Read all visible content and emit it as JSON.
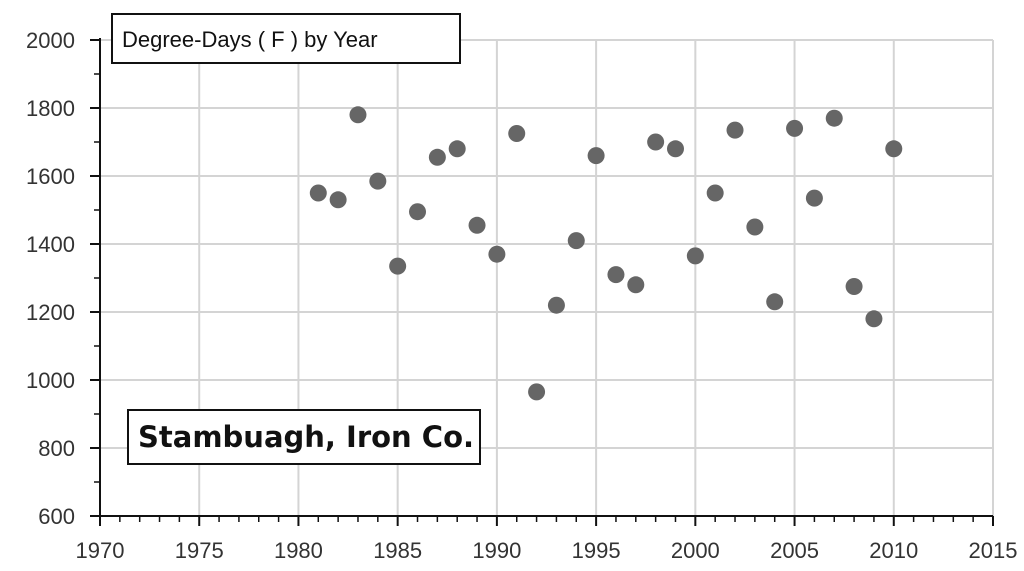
{
  "chart_data": {
    "type": "scatter",
    "title": "Degree-Days ( F ) by Year",
    "annotation": "Stambuagh, Iron Co.",
    "xlabel": "",
    "ylabel": "",
    "xlim": [
      1970,
      2015
    ],
    "ylim": [
      600,
      2000
    ],
    "x_ticks": [
      1970,
      1975,
      1980,
      1985,
      1990,
      1995,
      2000,
      2005,
      2010,
      2015
    ],
    "y_ticks": [
      600,
      800,
      1000,
      1200,
      1400,
      1600,
      1800,
      2000
    ],
    "grid": true,
    "marker_color": "#666666",
    "series": [
      {
        "points": [
          {
            "x": 1981,
            "y": 1550
          },
          {
            "x": 1982,
            "y": 1530
          },
          {
            "x": 1983,
            "y": 1780
          },
          {
            "x": 1984,
            "y": 1585
          },
          {
            "x": 1985,
            "y": 1335
          },
          {
            "x": 1986,
            "y": 1495
          },
          {
            "x": 1987,
            "y": 1655
          },
          {
            "x": 1988,
            "y": 1680
          },
          {
            "x": 1989,
            "y": 1455
          },
          {
            "x": 1990,
            "y": 1370
          },
          {
            "x": 1991,
            "y": 1725
          },
          {
            "x": 1992,
            "y": 965
          },
          {
            "x": 1993,
            "y": 1220
          },
          {
            "x": 1994,
            "y": 1410
          },
          {
            "x": 1995,
            "y": 1660
          },
          {
            "x": 1996,
            "y": 1310
          },
          {
            "x": 1997,
            "y": 1280
          },
          {
            "x": 1998,
            "y": 1700
          },
          {
            "x": 1999,
            "y": 1680
          },
          {
            "x": 2000,
            "y": 1365
          },
          {
            "x": 2001,
            "y": 1550
          },
          {
            "x": 2002,
            "y": 1735
          },
          {
            "x": 2003,
            "y": 1450
          },
          {
            "x": 2004,
            "y": 1230
          },
          {
            "x": 2005,
            "y": 1740
          },
          {
            "x": 2006,
            "y": 1535
          },
          {
            "x": 2007,
            "y": 1770
          },
          {
            "x": 2008,
            "y": 1275
          },
          {
            "x": 2009,
            "y": 1180
          },
          {
            "x": 2010,
            "y": 1680
          }
        ]
      }
    ]
  }
}
